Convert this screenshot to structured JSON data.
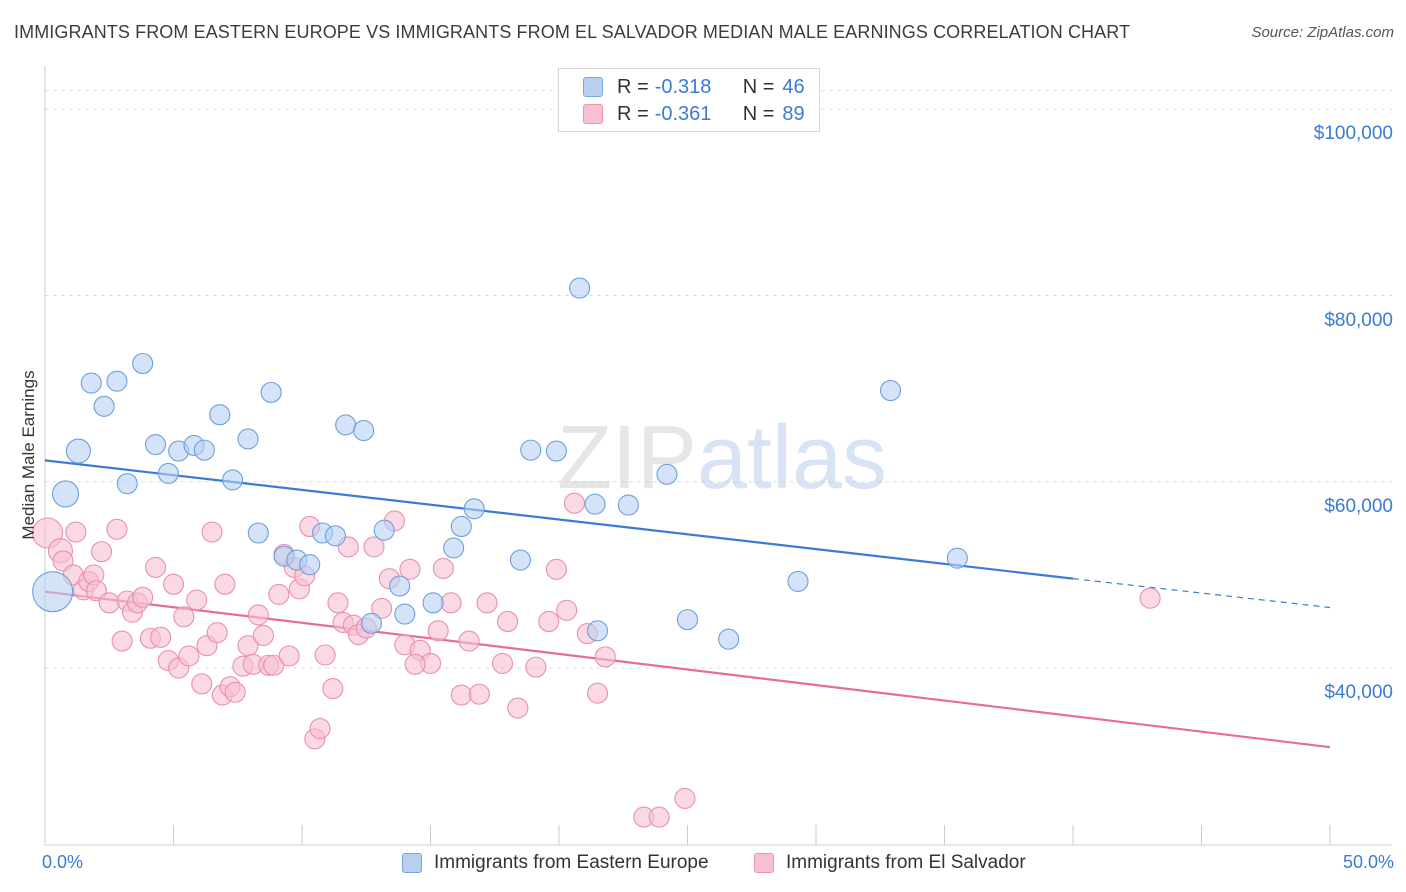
{
  "title": "IMMIGRANTS FROM EASTERN EUROPE VS IMMIGRANTS FROM EL SALVADOR MEDIAN MALE EARNINGS CORRELATION CHART",
  "source": "Source: ZipAtlas.com",
  "watermark": "ZIPatlas",
  "colors": {
    "blue": "#3a7bd5",
    "blue_fill": "#b7d0f2",
    "pink": "#e86d96",
    "pink_fill": "#f7c0d2",
    "grid": "#dddddd"
  },
  "legend_top": {
    "series1": {
      "r_label": "R =",
      "r_value": "-0.318",
      "n_label": "N =",
      "n_value": "46"
    },
    "series2": {
      "r_label": "R =",
      "r_value": "-0.361",
      "n_label": "N =",
      "n_value": "89"
    }
  },
  "chart_data": {
    "type": "scatter",
    "title": "IMMIGRANTS FROM EASTERN EUROPE VS IMMIGRANTS FROM EL SALVADOR MEDIAN MALE EARNINGS CORRELATION CHART",
    "xlabel": "",
    "ylabel": "Median Male Earnings",
    "xlim": [
      0,
      50
    ],
    "ylim": [
      21000,
      104000
    ],
    "x_tick_labels": [
      "0.0%",
      "50.0%"
    ],
    "y_ticks": [
      40000,
      60000,
      80000,
      100000
    ],
    "y_tick_labels": [
      "$40,000",
      "$60,000",
      "$80,000",
      "$100,000"
    ],
    "legend": [
      "Immigrants from Eastern Europe",
      "Immigrants from El Salvador"
    ],
    "series": [
      {
        "name": "Immigrants from Eastern Europe",
        "color": "#3a7bd5",
        "trend": {
          "x": [
            0,
            40
          ],
          "y": [
            62300,
            49600
          ],
          "dashed_to_x": 50,
          "dashed_to_y": 46500
        },
        "points": [
          [
            0.3,
            48.2
          ],
          [
            0.8,
            58.7
          ],
          [
            1.3,
            63.3
          ],
          [
            1.8,
            70.6
          ],
          [
            2.3,
            68.1
          ],
          [
            2.8,
            70.8
          ],
          [
            3.2,
            59.8
          ],
          [
            3.8,
            72.7
          ],
          [
            4.3,
            64.0
          ],
          [
            4.8,
            60.9
          ],
          [
            5.2,
            63.3
          ],
          [
            5.8,
            63.9
          ],
          [
            6.2,
            63.4
          ],
          [
            6.8,
            67.2
          ],
          [
            7.3,
            60.2
          ],
          [
            7.9,
            64.6
          ],
          [
            8.3,
            54.5
          ],
          [
            8.8,
            69.6
          ],
          [
            9.3,
            52.0
          ],
          [
            9.8,
            51.6
          ],
          [
            10.3,
            51.1
          ],
          [
            10.8,
            54.5
          ],
          [
            11.3,
            54.2
          ],
          [
            11.7,
            66.1
          ],
          [
            12.4,
            65.5
          ],
          [
            13.2,
            54.8
          ],
          [
            13.8,
            48.8
          ],
          [
            12.7,
            44.8
          ],
          [
            14.0,
            45.8
          ],
          [
            15.1,
            47.0
          ],
          [
            15.9,
            52.9
          ],
          [
            16.2,
            55.2
          ],
          [
            16.7,
            57.1
          ],
          [
            18.5,
            51.6
          ],
          [
            18.9,
            63.4
          ],
          [
            19.9,
            63.3
          ],
          [
            20.8,
            80.8
          ],
          [
            21.4,
            57.6
          ],
          [
            22.7,
            57.5
          ],
          [
            24.2,
            60.8
          ],
          [
            25.0,
            45.2
          ],
          [
            26.6,
            43.1
          ],
          [
            29.3,
            49.3
          ],
          [
            32.9,
            69.8
          ],
          [
            35.5,
            51.8
          ],
          [
            21.5,
            44.0
          ]
        ],
        "sizes": [
          20,
          13,
          12,
          10,
          10,
          10,
          10,
          10,
          10,
          10,
          10,
          10,
          10,
          10,
          10,
          10,
          10,
          10,
          10,
          10,
          10,
          10,
          10,
          10,
          10,
          10,
          10,
          10,
          10,
          10,
          10,
          10,
          10,
          10,
          10,
          10,
          10,
          10,
          10,
          10,
          10,
          10,
          10,
          10,
          10,
          10
        ]
      },
      {
        "name": "Immigrants from El Salvador",
        "color": "#e86d96",
        "trend": {
          "x": [
            0,
            50
          ],
          "y": [
            48200,
            31500
          ]
        },
        "points": [
          [
            0.1,
            54.5
          ],
          [
            0.6,
            52.6
          ],
          [
            0.7,
            51.5
          ],
          [
            1.1,
            50.0
          ],
          [
            1.2,
            54.6
          ],
          [
            1.5,
            48.4
          ],
          [
            1.7,
            49.3
          ],
          [
            1.9,
            50.0
          ],
          [
            2.0,
            48.3
          ],
          [
            2.2,
            52.5
          ],
          [
            2.5,
            47.0
          ],
          [
            2.8,
            54.9
          ],
          [
            3.0,
            42.9
          ],
          [
            3.2,
            47.2
          ],
          [
            3.4,
            46.0
          ],
          [
            3.6,
            47.0
          ],
          [
            3.8,
            47.6
          ],
          [
            4.1,
            43.2
          ],
          [
            4.3,
            50.8
          ],
          [
            4.5,
            43.3
          ],
          [
            4.8,
            40.8
          ],
          [
            5.0,
            49.0
          ],
          [
            5.2,
            40.0
          ],
          [
            5.4,
            45.5
          ],
          [
            5.6,
            41.3
          ],
          [
            5.9,
            47.3
          ],
          [
            6.1,
            38.3
          ],
          [
            6.3,
            42.4
          ],
          [
            6.5,
            54.6
          ],
          [
            6.7,
            43.8
          ],
          [
            6.9,
            37.1
          ],
          [
            7.0,
            49.0
          ],
          [
            7.2,
            38.0
          ],
          [
            7.4,
            37.4
          ],
          [
            7.7,
            40.2
          ],
          [
            7.9,
            42.4
          ],
          [
            8.1,
            40.4
          ],
          [
            8.3,
            45.7
          ],
          [
            8.5,
            43.5
          ],
          [
            8.7,
            40.3
          ],
          [
            8.9,
            40.3
          ],
          [
            9.1,
            47.9
          ],
          [
            9.3,
            52.2
          ],
          [
            9.5,
            41.3
          ],
          [
            9.7,
            50.8
          ],
          [
            9.9,
            48.5
          ],
          [
            10.1,
            49.9
          ],
          [
            10.3,
            55.2
          ],
          [
            10.5,
            32.4
          ],
          [
            10.7,
            33.5
          ],
          [
            10.9,
            41.4
          ],
          [
            11.2,
            37.8
          ],
          [
            11.4,
            47.0
          ],
          [
            11.6,
            44.9
          ],
          [
            11.8,
            53.0
          ],
          [
            12.0,
            44.6
          ],
          [
            12.2,
            43.6
          ],
          [
            12.5,
            44.3
          ],
          [
            12.8,
            53.0
          ],
          [
            13.1,
            46.4
          ],
          [
            13.4,
            49.6
          ],
          [
            13.6,
            55.8
          ],
          [
            14.0,
            42.5
          ],
          [
            14.2,
            50.6
          ],
          [
            14.6,
            41.9
          ],
          [
            15.0,
            40.5
          ],
          [
            15.3,
            44.0
          ],
          [
            15.5,
            50.7
          ],
          [
            15.8,
            47.0
          ],
          [
            16.2,
            37.1
          ],
          [
            16.5,
            42.9
          ],
          [
            16.9,
            37.2
          ],
          [
            17.2,
            47.0
          ],
          [
            17.8,
            40.5
          ],
          [
            18.0,
            45.0
          ],
          [
            18.4,
            35.7
          ],
          [
            19.1,
            40.1
          ],
          [
            19.6,
            45.0
          ],
          [
            19.9,
            50.6
          ],
          [
            20.3,
            46.2
          ],
          [
            20.6,
            57.7
          ],
          [
            21.1,
            43.7
          ],
          [
            21.5,
            37.3
          ],
          [
            21.8,
            41.2
          ],
          [
            23.3,
            24.0
          ],
          [
            23.9,
            24.0
          ],
          [
            24.9,
            26.0
          ],
          [
            43.0,
            47.5
          ],
          [
            14.4,
            40.4
          ]
        ],
        "sizes": [
          15,
          12,
          10,
          10,
          10,
          10,
          10,
          10,
          10,
          10,
          10,
          10,
          10,
          10,
          10,
          10,
          10,
          10,
          10,
          10,
          10,
          10,
          10,
          10,
          10,
          10,
          10,
          10,
          10,
          10,
          10,
          10,
          10,
          10,
          10,
          10,
          10,
          10,
          10,
          10,
          10,
          10,
          10,
          10,
          10,
          10,
          10,
          10,
          10,
          10,
          10,
          10,
          10,
          10,
          10,
          10,
          10,
          10,
          10,
          10,
          10,
          10,
          10,
          10,
          10,
          10,
          10,
          10,
          10,
          10,
          10,
          10,
          10,
          10,
          10,
          10,
          10,
          10,
          10,
          10,
          10,
          10,
          10,
          10,
          10,
          10,
          10,
          10,
          10
        ]
      }
    ]
  }
}
